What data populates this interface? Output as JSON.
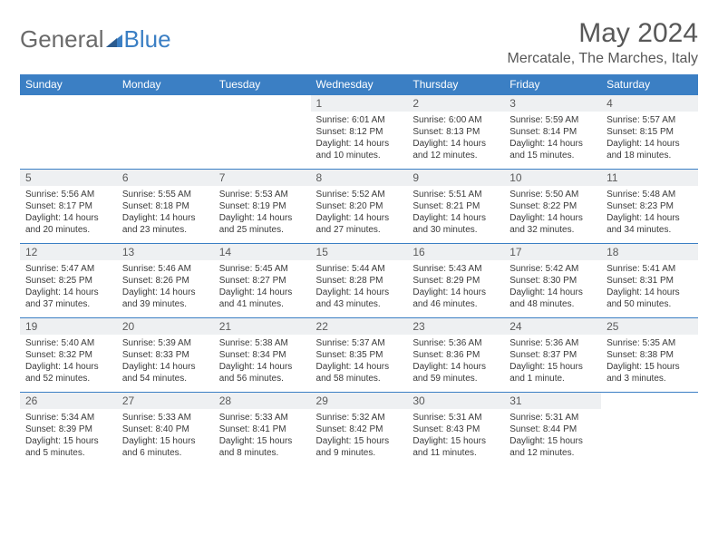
{
  "logo": {
    "text1": "General",
    "text2": "Blue"
  },
  "title": "May 2024",
  "location": "Mercatale, The Marches, Italy",
  "colors": {
    "header_bg": "#3b7fc4",
    "header_text": "#ffffff",
    "daynum_bg": "#eef0f2",
    "border": "#3b7fc4",
    "text": "#3a3a3a",
    "title_color": "#585858",
    "logo_gray": "#6a6a6a",
    "logo_blue": "#3b7fc4"
  },
  "day_headers": [
    "Sunday",
    "Monday",
    "Tuesday",
    "Wednesday",
    "Thursday",
    "Friday",
    "Saturday"
  ],
  "weeks": [
    [
      {
        "empty": true
      },
      {
        "empty": true
      },
      {
        "empty": true
      },
      {
        "num": "1",
        "sunrise": "Sunrise: 6:01 AM",
        "sunset": "Sunset: 8:12 PM",
        "day1": "Daylight: 14 hours",
        "day2": "and 10 minutes."
      },
      {
        "num": "2",
        "sunrise": "Sunrise: 6:00 AM",
        "sunset": "Sunset: 8:13 PM",
        "day1": "Daylight: 14 hours",
        "day2": "and 12 minutes."
      },
      {
        "num": "3",
        "sunrise": "Sunrise: 5:59 AM",
        "sunset": "Sunset: 8:14 PM",
        "day1": "Daylight: 14 hours",
        "day2": "and 15 minutes."
      },
      {
        "num": "4",
        "sunrise": "Sunrise: 5:57 AM",
        "sunset": "Sunset: 8:15 PM",
        "day1": "Daylight: 14 hours",
        "day2": "and 18 minutes."
      }
    ],
    [
      {
        "num": "5",
        "sunrise": "Sunrise: 5:56 AM",
        "sunset": "Sunset: 8:17 PM",
        "day1": "Daylight: 14 hours",
        "day2": "and 20 minutes."
      },
      {
        "num": "6",
        "sunrise": "Sunrise: 5:55 AM",
        "sunset": "Sunset: 8:18 PM",
        "day1": "Daylight: 14 hours",
        "day2": "and 23 minutes."
      },
      {
        "num": "7",
        "sunrise": "Sunrise: 5:53 AM",
        "sunset": "Sunset: 8:19 PM",
        "day1": "Daylight: 14 hours",
        "day2": "and 25 minutes."
      },
      {
        "num": "8",
        "sunrise": "Sunrise: 5:52 AM",
        "sunset": "Sunset: 8:20 PM",
        "day1": "Daylight: 14 hours",
        "day2": "and 27 minutes."
      },
      {
        "num": "9",
        "sunrise": "Sunrise: 5:51 AM",
        "sunset": "Sunset: 8:21 PM",
        "day1": "Daylight: 14 hours",
        "day2": "and 30 minutes."
      },
      {
        "num": "10",
        "sunrise": "Sunrise: 5:50 AM",
        "sunset": "Sunset: 8:22 PM",
        "day1": "Daylight: 14 hours",
        "day2": "and 32 minutes."
      },
      {
        "num": "11",
        "sunrise": "Sunrise: 5:48 AM",
        "sunset": "Sunset: 8:23 PM",
        "day1": "Daylight: 14 hours",
        "day2": "and 34 minutes."
      }
    ],
    [
      {
        "num": "12",
        "sunrise": "Sunrise: 5:47 AM",
        "sunset": "Sunset: 8:25 PM",
        "day1": "Daylight: 14 hours",
        "day2": "and 37 minutes."
      },
      {
        "num": "13",
        "sunrise": "Sunrise: 5:46 AM",
        "sunset": "Sunset: 8:26 PM",
        "day1": "Daylight: 14 hours",
        "day2": "and 39 minutes."
      },
      {
        "num": "14",
        "sunrise": "Sunrise: 5:45 AM",
        "sunset": "Sunset: 8:27 PM",
        "day1": "Daylight: 14 hours",
        "day2": "and 41 minutes."
      },
      {
        "num": "15",
        "sunrise": "Sunrise: 5:44 AM",
        "sunset": "Sunset: 8:28 PM",
        "day1": "Daylight: 14 hours",
        "day2": "and 43 minutes."
      },
      {
        "num": "16",
        "sunrise": "Sunrise: 5:43 AM",
        "sunset": "Sunset: 8:29 PM",
        "day1": "Daylight: 14 hours",
        "day2": "and 46 minutes."
      },
      {
        "num": "17",
        "sunrise": "Sunrise: 5:42 AM",
        "sunset": "Sunset: 8:30 PM",
        "day1": "Daylight: 14 hours",
        "day2": "and 48 minutes."
      },
      {
        "num": "18",
        "sunrise": "Sunrise: 5:41 AM",
        "sunset": "Sunset: 8:31 PM",
        "day1": "Daylight: 14 hours",
        "day2": "and 50 minutes."
      }
    ],
    [
      {
        "num": "19",
        "sunrise": "Sunrise: 5:40 AM",
        "sunset": "Sunset: 8:32 PM",
        "day1": "Daylight: 14 hours",
        "day2": "and 52 minutes."
      },
      {
        "num": "20",
        "sunrise": "Sunrise: 5:39 AM",
        "sunset": "Sunset: 8:33 PM",
        "day1": "Daylight: 14 hours",
        "day2": "and 54 minutes."
      },
      {
        "num": "21",
        "sunrise": "Sunrise: 5:38 AM",
        "sunset": "Sunset: 8:34 PM",
        "day1": "Daylight: 14 hours",
        "day2": "and 56 minutes."
      },
      {
        "num": "22",
        "sunrise": "Sunrise: 5:37 AM",
        "sunset": "Sunset: 8:35 PM",
        "day1": "Daylight: 14 hours",
        "day2": "and 58 minutes."
      },
      {
        "num": "23",
        "sunrise": "Sunrise: 5:36 AM",
        "sunset": "Sunset: 8:36 PM",
        "day1": "Daylight: 14 hours",
        "day2": "and 59 minutes."
      },
      {
        "num": "24",
        "sunrise": "Sunrise: 5:36 AM",
        "sunset": "Sunset: 8:37 PM",
        "day1": "Daylight: 15 hours",
        "day2": "and 1 minute."
      },
      {
        "num": "25",
        "sunrise": "Sunrise: 5:35 AM",
        "sunset": "Sunset: 8:38 PM",
        "day1": "Daylight: 15 hours",
        "day2": "and 3 minutes."
      }
    ],
    [
      {
        "num": "26",
        "sunrise": "Sunrise: 5:34 AM",
        "sunset": "Sunset: 8:39 PM",
        "day1": "Daylight: 15 hours",
        "day2": "and 5 minutes."
      },
      {
        "num": "27",
        "sunrise": "Sunrise: 5:33 AM",
        "sunset": "Sunset: 8:40 PM",
        "day1": "Daylight: 15 hours",
        "day2": "and 6 minutes."
      },
      {
        "num": "28",
        "sunrise": "Sunrise: 5:33 AM",
        "sunset": "Sunset: 8:41 PM",
        "day1": "Daylight: 15 hours",
        "day2": "and 8 minutes."
      },
      {
        "num": "29",
        "sunrise": "Sunrise: 5:32 AM",
        "sunset": "Sunset: 8:42 PM",
        "day1": "Daylight: 15 hours",
        "day2": "and 9 minutes."
      },
      {
        "num": "30",
        "sunrise": "Sunrise: 5:31 AM",
        "sunset": "Sunset: 8:43 PM",
        "day1": "Daylight: 15 hours",
        "day2": "and 11 minutes."
      },
      {
        "num": "31",
        "sunrise": "Sunrise: 5:31 AM",
        "sunset": "Sunset: 8:44 PM",
        "day1": "Daylight: 15 hours",
        "day2": "and 12 minutes."
      },
      {
        "empty": true
      }
    ]
  ]
}
